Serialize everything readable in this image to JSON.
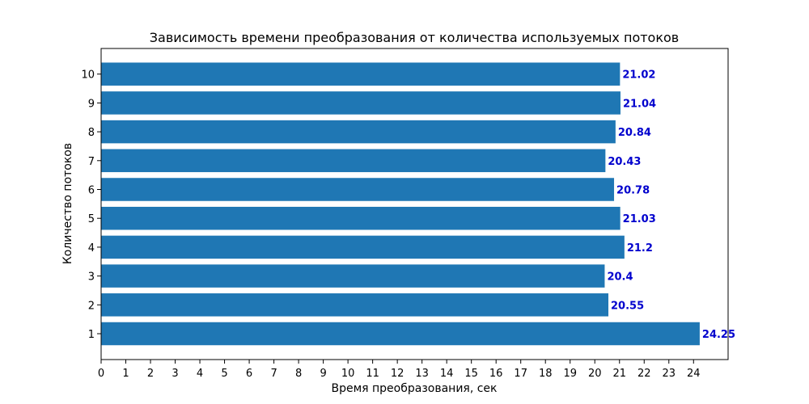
{
  "chart_data": {
    "type": "bar",
    "orientation": "horizontal",
    "title": "Зависимость времени преобразования от количества используемых потоков",
    "xlabel": "Время преобразования, сек",
    "ylabel": "Количество потоков",
    "categories": [
      "1",
      "2",
      "3",
      "4",
      "5",
      "6",
      "7",
      "8",
      "9",
      "10"
    ],
    "values": [
      24.25,
      20.55,
      20.4,
      21.2,
      21.03,
      20.78,
      20.43,
      20.84,
      21.04,
      21.02
    ],
    "value_labels": [
      "24.25",
      "20.55",
      "20.4",
      "21.2",
      "21.03",
      "20.78",
      "20.43",
      "20.84",
      "21.04",
      "21.02"
    ],
    "xticks": [
      "0",
      "1",
      "2",
      "3",
      "4",
      "5",
      "6",
      "7",
      "8",
      "9",
      "10",
      "11",
      "12",
      "13",
      "14",
      "15",
      "16",
      "17",
      "18",
      "19",
      "20",
      "21",
      "22",
      "23",
      "24"
    ],
    "xlim": [
      0,
      25.4
    ],
    "grid": false,
    "legend": false,
    "colors": {
      "bar": "#1f77b4",
      "value_label": "#0000cd"
    }
  }
}
